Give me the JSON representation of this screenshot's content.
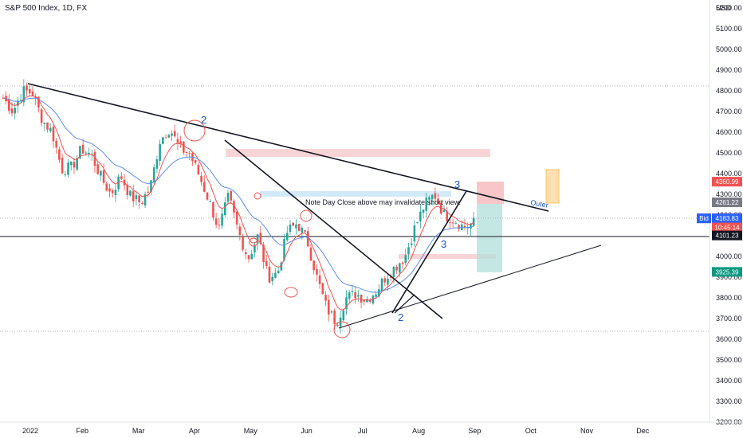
{
  "header": {
    "symbol": "S&P 500 Index, 1D, FX",
    "currency": "USD"
  },
  "colors": {
    "up": "#26a69a",
    "down": "#ef5350",
    "ema_fast": "#ef5350",
    "ema_slow": "#5b8def",
    "wave": "#1e55c8",
    "text": "#131722"
  },
  "chart_data": {
    "type": "candlestick",
    "title": "S&P 500 Index, 1D, FX",
    "ylim": [
      3200,
      5200
    ],
    "y_ticks": [
      "5200.00",
      "5100.00",
      "5000.00",
      "4900.00",
      "4800.00",
      "4700.00",
      "4600.00",
      "4500.00",
      "4400.00",
      "4300.00",
      "4200.00",
      "4100.00",
      "4000.00",
      "3900.00",
      "3800.00",
      "3700.00",
      "3600.00",
      "3500.00",
      "3400.00",
      "3300.00",
      "3200.00"
    ],
    "x_ticks": [
      "2022",
      "Feb",
      "Mar",
      "Apr",
      "May",
      "Jun",
      "Jul",
      "Aug",
      "Sep",
      "Oct",
      "Nov",
      "Dec"
    ],
    "close_path": [
      4766,
      4700,
      4800,
      4790,
      4660,
      4600,
      4420,
      4430,
      4520,
      4490,
      4380,
      4300,
      4390,
      4290,
      4260,
      4330,
      4560,
      4620,
      4520,
      4500,
      4390,
      4270,
      4130,
      4290,
      4120,
      3990,
      4100,
      3900,
      3920,
      4120,
      4160,
      4080,
      3900,
      3750,
      3680,
      3800,
      3820,
      3790,
      3830,
      3900,
      3950,
      4000,
      4140,
      4250,
      4300,
      4200,
      4180,
      4140,
      4162
    ],
    "price_labels": [
      {
        "value": "4360.99",
        "color": "#ef5350",
        "y": 4360.99
      },
      {
        "value": "4261.22",
        "color": "#787b86",
        "y": 4261.22
      },
      {
        "value": "4184.43",
        "color": "#ef5350",
        "y": 4184.43,
        "tag": "Ask"
      },
      {
        "value": "4183.83",
        "color": "#2962ff",
        "y": 4183.83,
        "tag": "Bid"
      },
      {
        "value": "10:45:14",
        "color": "#ef5350",
        "y": 4140
      },
      {
        "value": "4101.23",
        "color": "#131722",
        "y": 4101.23
      },
      {
        "value": "3925.39",
        "color": "#089981",
        "y": 3925.39
      }
    ],
    "annotations": {
      "note": "Note Day Close above may invalidate short view.",
      "outer": "Outer",
      "waves": [
        "2",
        "3",
        "2",
        "3"
      ]
    }
  }
}
